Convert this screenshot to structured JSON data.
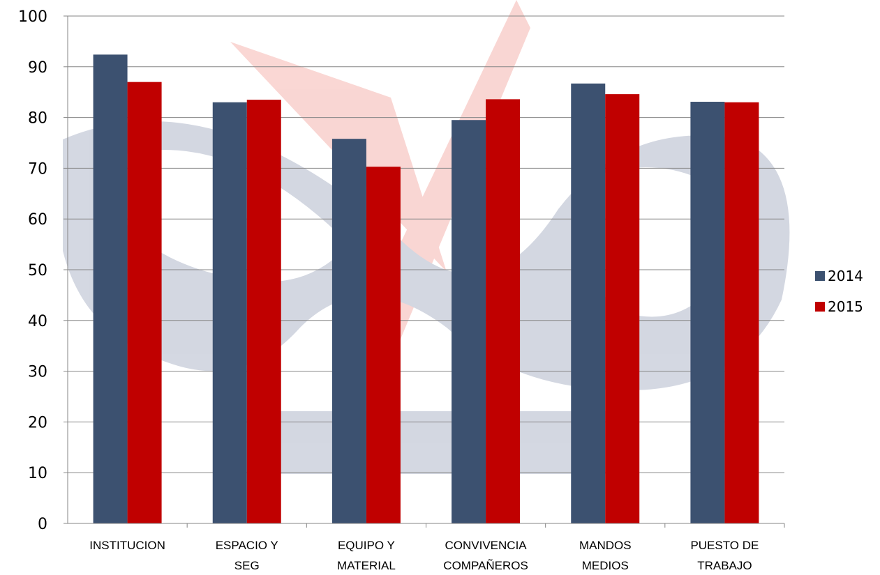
{
  "chart_data": {
    "type": "bar",
    "categories": [
      [
        "INSTITUCION"
      ],
      [
        "ESPACIO Y",
        "SEG"
      ],
      [
        "EQUIPO Y",
        "MATERIAL"
      ],
      [
        "CONVIVENCIA",
        "COMPAÑEROS"
      ],
      [
        "MANDOS",
        "MEDIOS"
      ],
      [
        "PUESTO DE",
        "TRABAJO"
      ]
    ],
    "series": [
      {
        "name": "2014",
        "color": "#3c5170",
        "values": [
          92.4,
          83.0,
          75.8,
          79.5,
          86.7,
          83.1
        ]
      },
      {
        "name": "2015",
        "color": "#c00000",
        "values": [
          87.0,
          83.5,
          70.3,
          83.6,
          84.6,
          83.0
        ]
      }
    ],
    "title": "",
    "xlabel": "",
    "ylabel": "",
    "ylim": [
      0,
      100
    ],
    "yticks": [
      0,
      10,
      20,
      30,
      40,
      50,
      60,
      70,
      80,
      90,
      100
    ],
    "grid": "horizontal",
    "legend_position": "right",
    "watermark": "university logo (faded blue/red) behind plot"
  }
}
